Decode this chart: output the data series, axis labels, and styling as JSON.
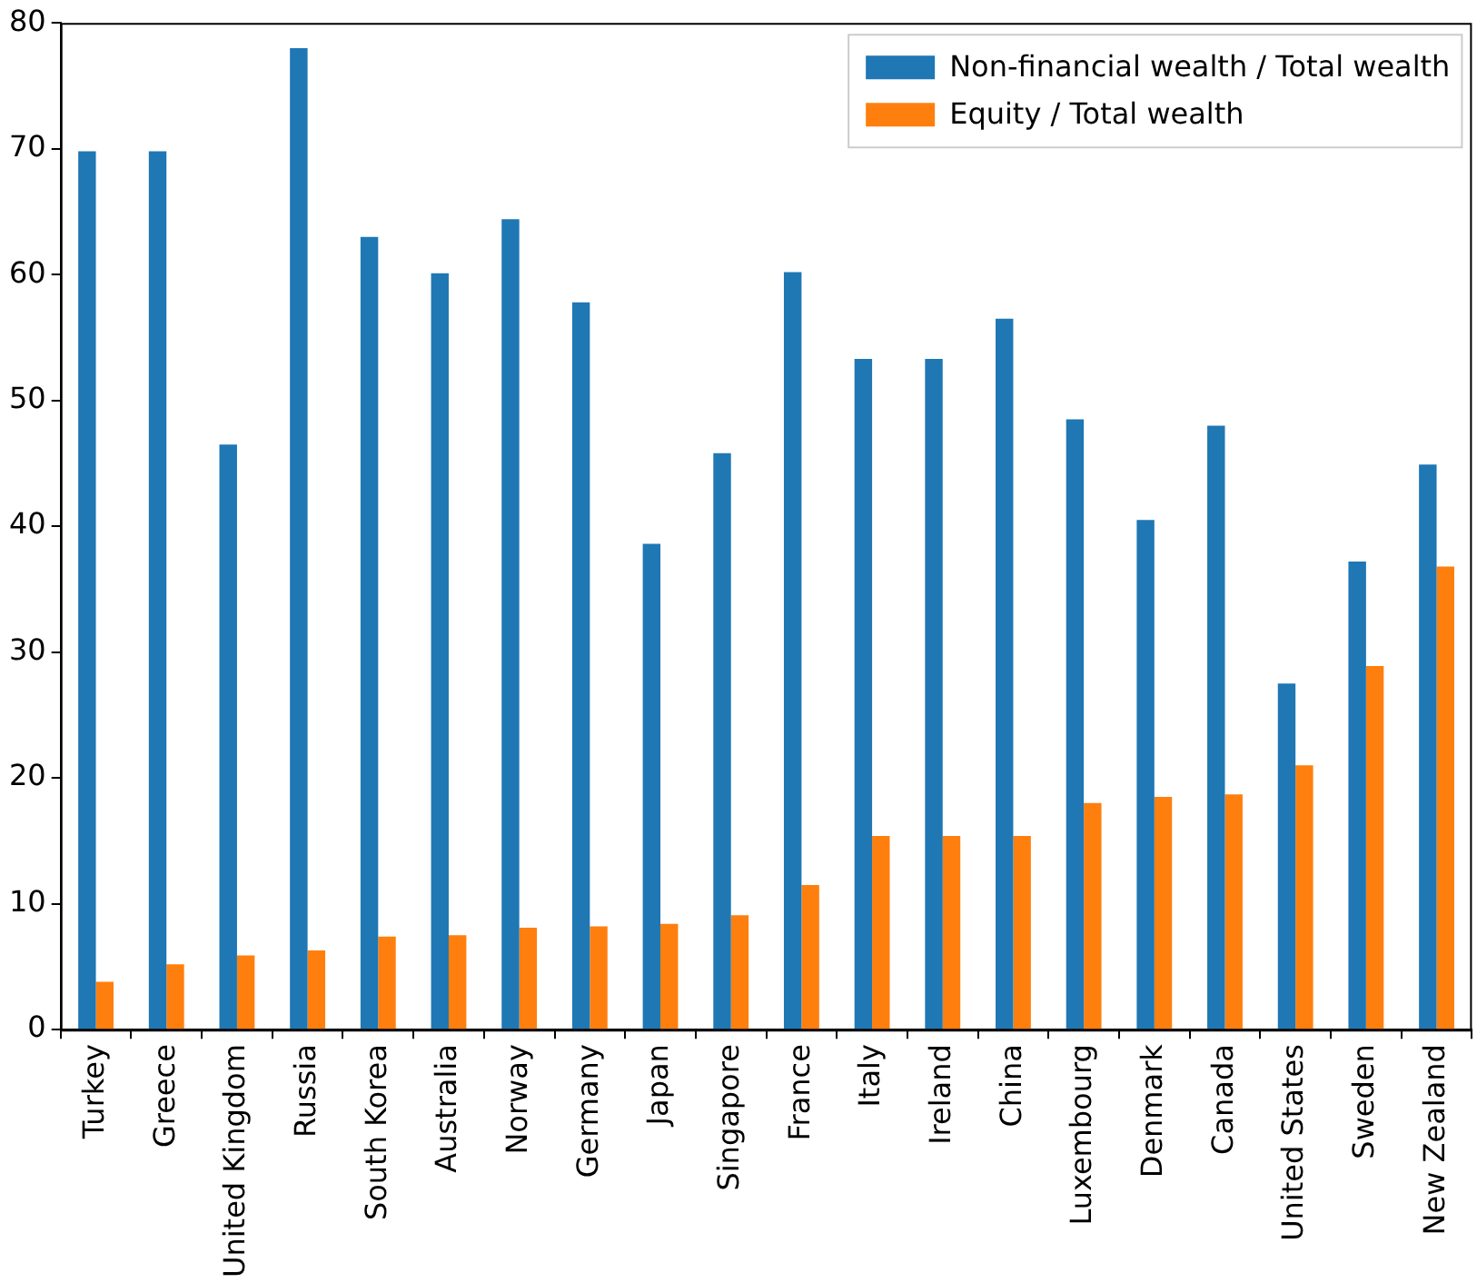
{
  "chart_data": {
    "type": "bar",
    "categories": [
      "Turkey",
      "Greece",
      "United Kingdom",
      "Russia",
      "South Korea",
      "Australia",
      "Norway",
      "Germany",
      "Japan",
      "Singapore",
      "France",
      "Italy",
      "Ireland",
      "China",
      "Luxembourg",
      "Denmark",
      "Canada",
      "United States",
      "Sweden",
      "New Zealand"
    ],
    "series": [
      {
        "name": "Non-financial wealth / Total wealth",
        "color": "#1f77b4",
        "values": [
          69.8,
          69.8,
          46.5,
          78,
          63,
          60.1,
          64.4,
          57.8,
          38.6,
          45.8,
          60.2,
          53.3,
          53.3,
          56.5,
          48.5,
          40.5,
          48,
          27.5,
          37.2,
          44.9
        ]
      },
      {
        "name": "Equity / Total wealth",
        "color": "#ff7f0e",
        "values": [
          3.8,
          5.2,
          5.9,
          6.3,
          7.4,
          7.5,
          8.1,
          8.2,
          8.4,
          9.1,
          11.5,
          15.4,
          15.4,
          15.4,
          18,
          18.5,
          18.7,
          21,
          28.9,
          36.8
        ]
      }
    ],
    "ylim": [
      0,
      80
    ],
    "yticks": [
      0,
      10,
      20,
      30,
      40,
      50,
      60,
      70,
      80
    ],
    "grid": false,
    "legend": "top right"
  }
}
